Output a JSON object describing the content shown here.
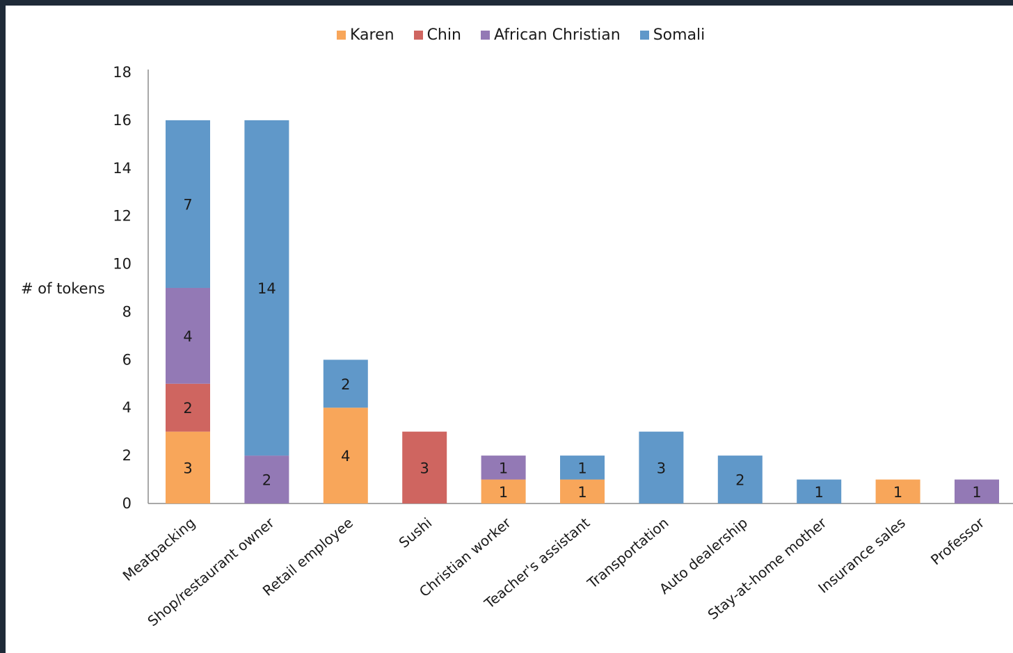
{
  "chart_data": {
    "type": "bar",
    "stacked": true,
    "title": "",
    "xlabel": "",
    "ylabel": "# of tokens",
    "ylim": [
      0,
      18
    ],
    "yticks": [
      0,
      2,
      4,
      6,
      8,
      10,
      12,
      14,
      16,
      18
    ],
    "grid": false,
    "legend_position": "top",
    "categories": [
      "Meatpacking",
      "Shop/restaurant owner",
      "Retail employee",
      "Sushi",
      "Christian worker",
      "Teacher's assistant",
      "Transportation",
      "Auto dealership",
      "Stay-at-home mother",
      "Insurance sales",
      "Professor"
    ],
    "series": [
      {
        "name": "Karen",
        "color": "#f8a65a",
        "values": [
          3,
          0,
          4,
          0,
          1,
          1,
          0,
          0,
          0,
          1,
          0
        ]
      },
      {
        "name": "Chin",
        "color": "#cf6560",
        "values": [
          2,
          0,
          0,
          3,
          0,
          0,
          0,
          0,
          0,
          0,
          0
        ]
      },
      {
        "name": "African Christian",
        "color": "#9379b5",
        "values": [
          4,
          2,
          0,
          0,
          1,
          0,
          0,
          0,
          0,
          0,
          1
        ]
      },
      {
        "name": "Somali",
        "color": "#6098c9",
        "values": [
          7,
          14,
          2,
          0,
          0,
          1,
          3,
          2,
          1,
          0,
          0
        ]
      }
    ]
  }
}
